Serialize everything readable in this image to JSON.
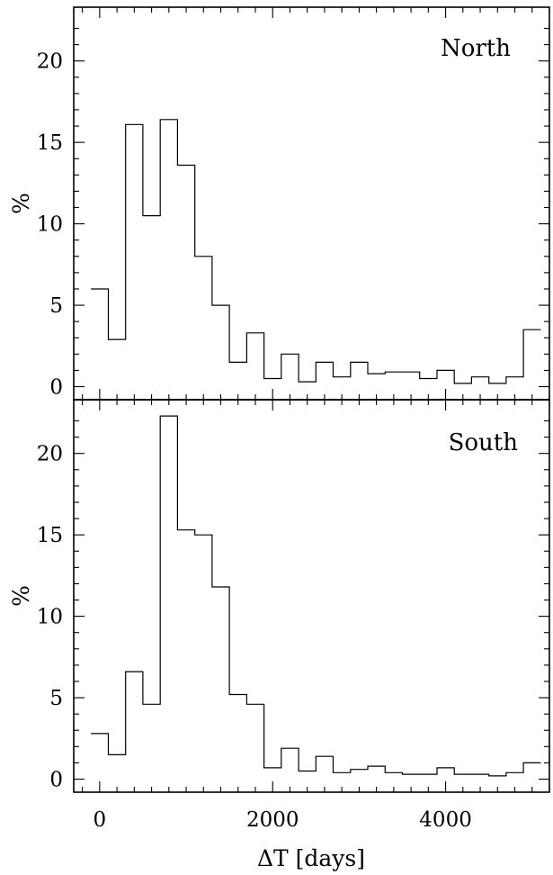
{
  "chart_data": [
    {
      "type": "bar",
      "title": "North",
      "xlabel": "",
      "ylabel": "%",
      "xlim": [
        -300,
        5200
      ],
      "ylim": [
        -0.8,
        23.3
      ],
      "y_ticks": [
        0,
        5,
        10,
        15,
        20
      ],
      "bin_width": 200,
      "bin_start": -100,
      "values": [
        6.0,
        2.9,
        16.1,
        10.5,
        16.4,
        13.6,
        8.0,
        5.0,
        1.5,
        3.3,
        0.5,
        2.0,
        0.3,
        1.5,
        0.6,
        1.5,
        0.8,
        0.9,
        0.9,
        0.5,
        1.0,
        0.2,
        0.6,
        0.2,
        0.6,
        3.5
      ]
    },
    {
      "type": "bar",
      "title": "South",
      "xlabel": "ΔT [days]",
      "ylabel": "%",
      "xlim": [
        -300,
        5200
      ],
      "ylim": [
        -0.8,
        23.3
      ],
      "y_ticks": [
        0,
        5,
        10,
        15,
        20
      ],
      "x_ticks": [
        0,
        2000,
        4000
      ],
      "bin_width": 200,
      "bin_start": -100,
      "values": [
        2.8,
        1.5,
        6.6,
        4.6,
        22.3,
        15.3,
        15.0,
        11.8,
        5.2,
        4.6,
        0.7,
        1.9,
        0.5,
        1.4,
        0.4,
        0.6,
        0.8,
        0.4,
        0.3,
        0.3,
        0.7,
        0.3,
        0.3,
        0.2,
        0.4,
        1.0
      ]
    }
  ]
}
